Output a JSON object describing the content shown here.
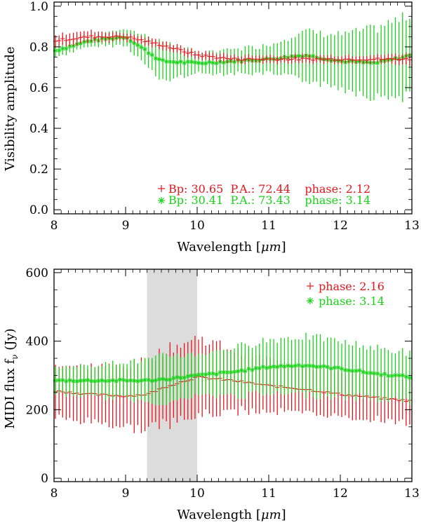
{
  "colors": {
    "red": "#e8141c",
    "green": "#16d416",
    "shade": "#dcdcdc",
    "axis": "#000000"
  },
  "chart_data": [
    {
      "type": "scatter",
      "xlabel": "Wavelength [",
      "xlabel_unit": "μm",
      "xlabel_end": "]",
      "ylabel": "Visibility amplitude",
      "xlim": [
        8,
        13
      ],
      "ylim": [
        -0.02,
        1.02
      ],
      "xticks": [
        8,
        9,
        10,
        11,
        12,
        13
      ],
      "xtick_labels": [
        "8",
        "9",
        "10",
        "11",
        "12",
        "13"
      ],
      "yticks": [
        0.0,
        0.2,
        0.4,
        0.6,
        0.8,
        1.0
      ],
      "ytick_labels": [
        "0.0",
        "0.2",
        "0.4",
        "0.6",
        "0.8",
        "1.0"
      ],
      "legend_position": "bottom-right",
      "series": [
        {
          "name": "Bp: 30.65  P.A.: 72.44    phase: 2.12",
          "marker": "plus",
          "color": "red",
          "x": [
            8.0,
            8.5,
            9.0,
            9.5,
            10.0,
            10.5,
            11.0,
            11.5,
            12.0,
            12.5,
            13.0
          ],
          "values": [
            0.83,
            0.85,
            0.85,
            0.81,
            0.76,
            0.74,
            0.74,
            0.74,
            0.74,
            0.74,
            0.74
          ],
          "errors": [
            0.03,
            0.03,
            0.02,
            0.02,
            0.02,
            0.02,
            0.02,
            0.02,
            0.02,
            0.02,
            0.03
          ]
        },
        {
          "name": "Bp: 30.41  P.A.: 73.43    phase: 3.14",
          "marker": "asterisk",
          "color": "green",
          "x": [
            8.0,
            8.5,
            9.0,
            9.5,
            10.0,
            10.5,
            11.0,
            11.5,
            12.0,
            12.5,
            13.0
          ],
          "values": [
            0.78,
            0.83,
            0.85,
            0.73,
            0.72,
            0.73,
            0.74,
            0.76,
            0.73,
            0.72,
            0.76
          ],
          "errors": [
            0.03,
            0.03,
            0.04,
            0.1,
            0.05,
            0.06,
            0.07,
            0.12,
            0.13,
            0.17,
            0.2
          ]
        }
      ]
    },
    {
      "type": "scatter",
      "xlabel": "Wavelength [",
      "xlabel_unit": "μm",
      "xlabel_end": "]",
      "ylabel": "MIDI flux f",
      "ylabel_sub": "ν",
      "ylabel_end": " (Jy)",
      "xlim": [
        8,
        13
      ],
      "ylim": [
        -10,
        610
      ],
      "xticks": [
        8,
        9,
        10,
        11,
        12,
        13
      ],
      "xtick_labels": [
        "8",
        "9",
        "10",
        "11",
        "12",
        "13"
      ],
      "yticks": [
        0,
        200,
        400,
        600
      ],
      "ytick_labels": [
        "0",
        "200",
        "400",
        "600"
      ],
      "shaded_region": [
        9.3,
        10.0
      ],
      "legend_position": "top-right",
      "series": [
        {
          "name": "phase: 2.16",
          "marker": "plus",
          "color": "red",
          "x": [
            8.0,
            8.5,
            9.0,
            9.3,
            9.6,
            10.0,
            10.5,
            11.0,
            11.5,
            12.0,
            12.5,
            13.0
          ],
          "values": [
            255,
            245,
            240,
            245,
            270,
            295,
            285,
            270,
            260,
            245,
            235,
            225
          ],
          "errors": [
            80,
            80,
            90,
            100,
            110,
            115,
            90,
            75,
            70,
            65,
            65,
            65
          ]
        },
        {
          "name": "phase: 3.14",
          "marker": "asterisk",
          "color": "green",
          "x": [
            8.0,
            8.5,
            9.0,
            9.3,
            9.6,
            10.0,
            10.5,
            11.0,
            11.5,
            12.0,
            12.5,
            13.0
          ],
          "values": [
            285,
            285,
            285,
            285,
            290,
            300,
            310,
            325,
            330,
            320,
            305,
            295
          ],
          "errors": [
            40,
            45,
            55,
            60,
            70,
            60,
            70,
            80,
            85,
            80,
            75,
            70
          ]
        }
      ]
    }
  ]
}
